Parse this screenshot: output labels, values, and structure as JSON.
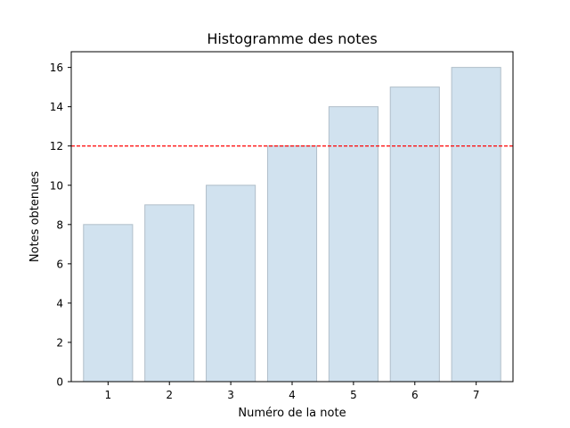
{
  "chart_data": {
    "type": "bar",
    "title": "Histogramme des notes",
    "xlabel": "Numéro de la note",
    "ylabel": "Notes obtenues",
    "categories": [
      "1",
      "2",
      "3",
      "4",
      "5",
      "6",
      "7"
    ],
    "values": [
      8,
      9,
      10,
      12,
      14,
      15,
      16
    ],
    "ylim": [
      0,
      16.8
    ],
    "yticks": [
      0,
      2,
      4,
      6,
      8,
      10,
      12,
      14,
      16
    ],
    "threshold": 12,
    "grid": false,
    "colors": {
      "bar_fill": "#d1e2ef",
      "bar_edge": "#b0bec9",
      "threshold_line": "#ff0000",
      "axis": "#000000"
    }
  }
}
